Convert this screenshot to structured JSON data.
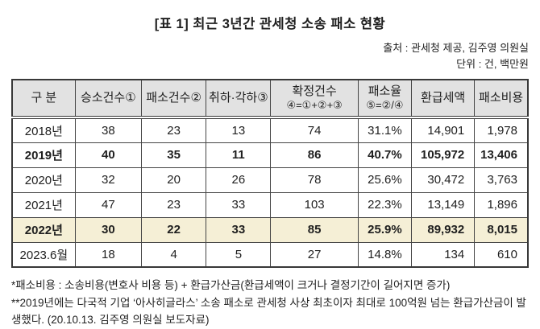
{
  "title": "[표 1] 최근 3년간 관세청 소송 패소 현황",
  "source_line": "출처 : 관세청 제공, 김주영 의원실",
  "unit_line": "단위 : 건, 백만원",
  "table": {
    "columns": [
      {
        "label": "구 분",
        "sub": ""
      },
      {
        "label": "승소건수①",
        "sub": ""
      },
      {
        "label": "패소건수②",
        "sub": ""
      },
      {
        "label": "취하·각하③",
        "sub": ""
      },
      {
        "label": "확정건수",
        "sub": "④=①+②+③"
      },
      {
        "label": "패소율",
        "sub": "⑤=②/④"
      },
      {
        "label": "환급세액",
        "sub": ""
      },
      {
        "label": "패소비용",
        "sub": ""
      }
    ],
    "rows": [
      {
        "label": "2018년",
        "values": [
          "38",
          "23",
          "13",
          "74",
          "31.1%",
          "14,901",
          "1,978"
        ],
        "bold": false,
        "highlight": false
      },
      {
        "label": "2019년",
        "values": [
          "40",
          "35",
          "11",
          "86",
          "40.7%",
          "105,972",
          "13,406"
        ],
        "bold": true,
        "highlight": false
      },
      {
        "label": "2020년",
        "values": [
          "32",
          "20",
          "26",
          "78",
          "25.6%",
          "30,472",
          "3,763"
        ],
        "bold": false,
        "highlight": false
      },
      {
        "label": "2021년",
        "values": [
          "47",
          "23",
          "33",
          "103",
          "22.3%",
          "13,149",
          "1,896"
        ],
        "bold": false,
        "highlight": false
      },
      {
        "label": "2022년",
        "values": [
          "30",
          "22",
          "33",
          "85",
          "25.9%",
          "89,932",
          "8,015"
        ],
        "bold": true,
        "highlight": true
      },
      {
        "label": "2023.6월",
        "values": [
          "18",
          "4",
          "5",
          "27",
          "14.8%",
          "134",
          "610"
        ],
        "bold": false,
        "highlight": false
      }
    ]
  },
  "footnotes": [
    "*패소비용 : 소송비용(변호사 비용 등) + 환급가산금(환급세액이 크거나 결정기간이 길어지면 증가)",
    "**2019년에는 다국적 기업 ‘아사히글라스’ 소송 패소로 관세청 사상 최초이자 최대로 100억원 넘는 환급가산금이 발생했다. (20.10.13. 김주영 의원실 보도자료)"
  ],
  "colors": {
    "header_bg": "#e2e2e2",
    "highlight_bg": "#f5efd6",
    "border": "#454545",
    "text": "#1f1f1f"
  }
}
